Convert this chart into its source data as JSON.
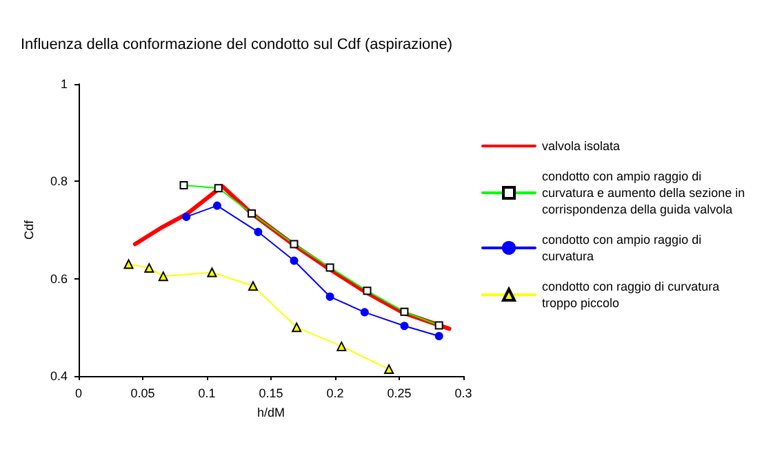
{
  "chart_data": {
    "type": "line",
    "title": "Influenza della conformazione del condotto sul Cdf (aspirazione)",
    "xlabel": "h/dM",
    "ylabel": "Cdf",
    "xlim": [
      0,
      0.3
    ],
    "xticks": [
      0,
      0.05,
      0.1,
      0.15,
      0.2,
      0.25,
      0.3
    ],
    "ylim": [
      0.4,
      1
    ],
    "yticks": [
      0.4,
      0.6,
      0.8,
      1
    ],
    "grid": false,
    "legend": "right",
    "line_style": "solid",
    "series": [
      {
        "name": "valvola isolata",
        "color": "#ff0000",
        "marker": "none",
        "x": [
          0.044,
          0.064,
          0.085,
          0.112,
          0.135,
          0.167,
          0.196,
          0.224,
          0.253,
          0.289
        ],
        "values": [
          0.671,
          0.704,
          0.734,
          0.79,
          0.734,
          0.671,
          0.619,
          0.572,
          0.53,
          0.497
        ]
      },
      {
        "name": "condotto con ampio raggio di curvatura e aumento della sezione in corrispondenza della guida valvola",
        "color": "#00ff00",
        "marker": "square",
        "x": [
          0.082,
          0.109,
          0.135,
          0.168,
          0.196,
          0.225,
          0.254,
          0.281
        ],
        "values": [
          0.792,
          0.786,
          0.734,
          0.671,
          0.623,
          0.575,
          0.532,
          0.504
        ]
      },
      {
        "name": "condotto con ampio raggio di curvatura",
        "color": "#0000ff",
        "marker": "circle",
        "x": [
          0.084,
          0.108,
          0.14,
          0.168,
          0.196,
          0.223,
          0.254,
          0.281
        ],
        "values": [
          0.727,
          0.75,
          0.696,
          0.637,
          0.563,
          0.531,
          0.503,
          0.482
        ]
      },
      {
        "name": "condotto con raggio di curvatura troppo piccolo",
        "color": "#ffff00",
        "marker": "triangle",
        "x": [
          0.039,
          0.055,
          0.066,
          0.104,
          0.136,
          0.17,
          0.205,
          0.242
        ],
        "values": [
          0.63,
          0.622,
          0.605,
          0.613,
          0.585,
          0.5,
          0.461,
          0.414
        ]
      }
    ]
  }
}
